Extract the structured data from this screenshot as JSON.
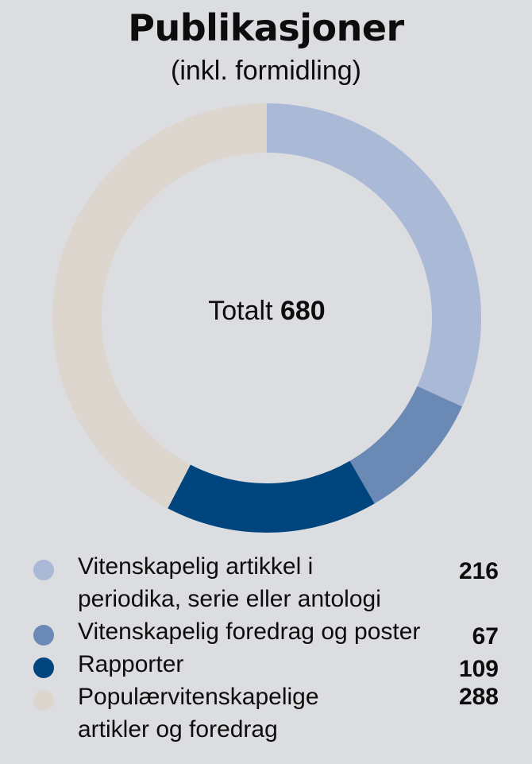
{
  "header": {
    "title": "Publikasjoner",
    "subtitle": "(inkl. formidling)"
  },
  "center": {
    "label": "Totalt",
    "total": "680"
  },
  "legend": [
    {
      "label": "Vitenskapelig artikkel i\nperiodika, serie eller antologi",
      "value": "216",
      "color": "#a9b9d6"
    },
    {
      "label": "Vitenskapelig foredrag og poster",
      "value": "67",
      "color": "#6a89b4"
    },
    {
      "label": "Rapporter",
      "value": "109",
      "color": "#00457e"
    },
    {
      "label": "Populærvitenskapelige\nartikler og foredrag",
      "value": "288",
      "color": "#dcd6ce"
    }
  ],
  "chart_data": {
    "type": "pie",
    "subtype": "donut",
    "title": "Publikasjoner",
    "subtitle": "(inkl. formidling)",
    "center_text": "Totalt 680",
    "total": 680,
    "categories": [
      "Vitenskapelig artikkel i periodika, serie eller antologi",
      "Vitenskapelig foredrag og poster",
      "Rapporter",
      "Populærvitenskapelige artikler og foredrag"
    ],
    "values": [
      216,
      67,
      109,
      288
    ],
    "colors": [
      "#a9b9d6",
      "#6a89b4",
      "#00457e",
      "#dcd6ce"
    ],
    "start_angle": "12 o'clock",
    "direction": "clockwise",
    "legend_position": "bottom"
  }
}
